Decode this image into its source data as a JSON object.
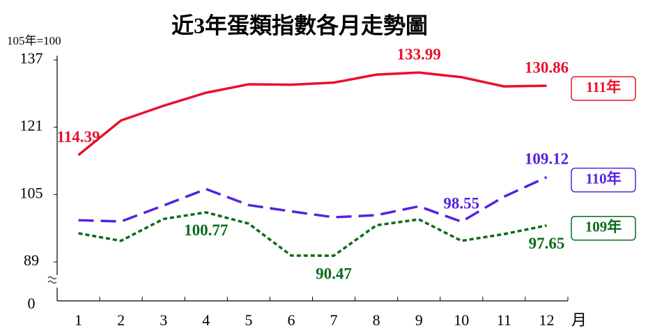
{
  "chart_data": {
    "type": "line",
    "title": "近3年蛋類指數各月走勢圖",
    "subtitle": "105年=100",
    "x_label": "月",
    "categories": [
      "1",
      "2",
      "3",
      "4",
      "5",
      "6",
      "7",
      "8",
      "9",
      "10",
      "11",
      "12"
    ],
    "ylim": [
      0,
      137
    ],
    "y_break": [
      0,
      89
    ],
    "yticks": [
      0,
      89,
      105,
      121,
      137
    ],
    "grid": false,
    "legend": "right",
    "series": [
      {
        "name": "111年",
        "color": "#e8112d",
        "dash": "solid",
        "label_position": "above",
        "values": [
          114.39,
          122.6,
          126.1,
          129.2,
          131.2,
          131.1,
          131.6,
          133.5,
          133.99,
          132.9,
          130.7,
          130.86
        ],
        "value_labels": [
          "114.39",
          null,
          null,
          null,
          null,
          null,
          null,
          null,
          "133.99",
          null,
          null,
          "130.86"
        ]
      },
      {
        "name": "110年",
        "color": "#5522dd",
        "dash": "long",
        "label_position": "above",
        "values": [
          98.9,
          98.6,
          102.4,
          106.3,
          102.5,
          101.0,
          99.6,
          100.1,
          102.2,
          98.55,
          104.5,
          109.12
        ],
        "value_labels": [
          null,
          null,
          null,
          null,
          null,
          null,
          null,
          null,
          null,
          "98.55",
          null,
          "109.12"
        ]
      },
      {
        "name": "109年",
        "color": "#0a6b1a",
        "dash": "short",
        "label_position": "below",
        "values": [
          95.8,
          94.0,
          99.2,
          100.77,
          98.1,
          90.5,
          90.47,
          97.7,
          99.1,
          94.0,
          95.6,
          97.65
        ],
        "value_labels": [
          null,
          null,
          null,
          "100.77",
          null,
          null,
          "90.47",
          null,
          null,
          null,
          null,
          "97.65"
        ]
      }
    ]
  }
}
